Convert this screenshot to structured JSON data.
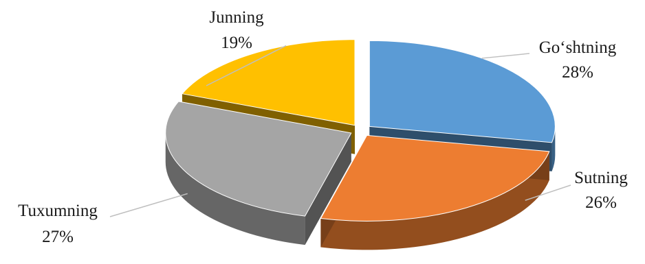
{
  "chart_data": {
    "type": "pie",
    "title": "",
    "style": "3d-exploded",
    "categories": [
      "Go‘shtning",
      "Sutning",
      "Tuxumning",
      "Junning"
    ],
    "values": [
      28,
      26,
      27,
      19
    ],
    "percent_labels": [
      "28%",
      "26%",
      "27%",
      "19%"
    ],
    "colors": [
      "#5b9bd5",
      "#ed7d31",
      "#a5a5a5",
      "#ffc000"
    ],
    "legend": "none"
  }
}
